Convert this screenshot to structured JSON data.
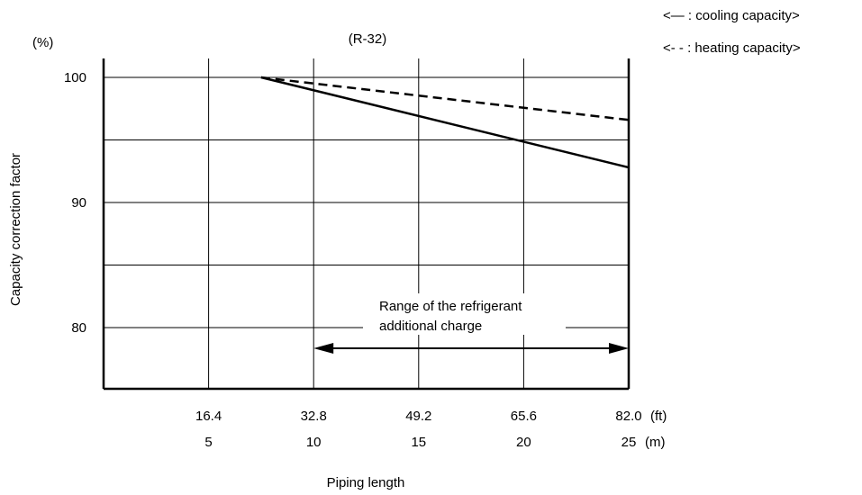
{
  "chart_data": {
    "type": "line",
    "title": "(R-32)",
    "xlabel": "Piping length",
    "ylabel": "Capacity correction factor",
    "y_unit": "(%)",
    "x_unit_ft": "(ft)",
    "x_unit_m": "(m)",
    "xlim_m": [
      0,
      25
    ],
    "ylim": [
      75,
      101
    ],
    "x_ticks_m": [
      "5",
      "10",
      "15",
      "20",
      "25"
    ],
    "x_ticks_ft": [
      "16.4",
      "32.8",
      "49.2",
      "65.6",
      "82.0"
    ],
    "y_ticks": [
      "100",
      "90",
      "80"
    ],
    "y_gridlines": [
      80,
      85,
      90,
      95,
      100
    ],
    "grid": true,
    "legend": {
      "placement": "top-right",
      "cooling": "<— : cooling capacity>",
      "heating": "<- - : heating capacity>"
    },
    "series": [
      {
        "name": "cooling capacity",
        "style": "solid",
        "x": [
          7.5,
          25
        ],
        "y": [
          100,
          92.8
        ]
      },
      {
        "name": "heating capacity",
        "style": "dashed",
        "x": [
          7.5,
          25
        ],
        "y": [
          100,
          96.6
        ]
      }
    ],
    "annotation": {
      "line1": "Range of the refrigerant",
      "line2": "additional charge",
      "from_x": 10,
      "to_x": 25
    }
  }
}
